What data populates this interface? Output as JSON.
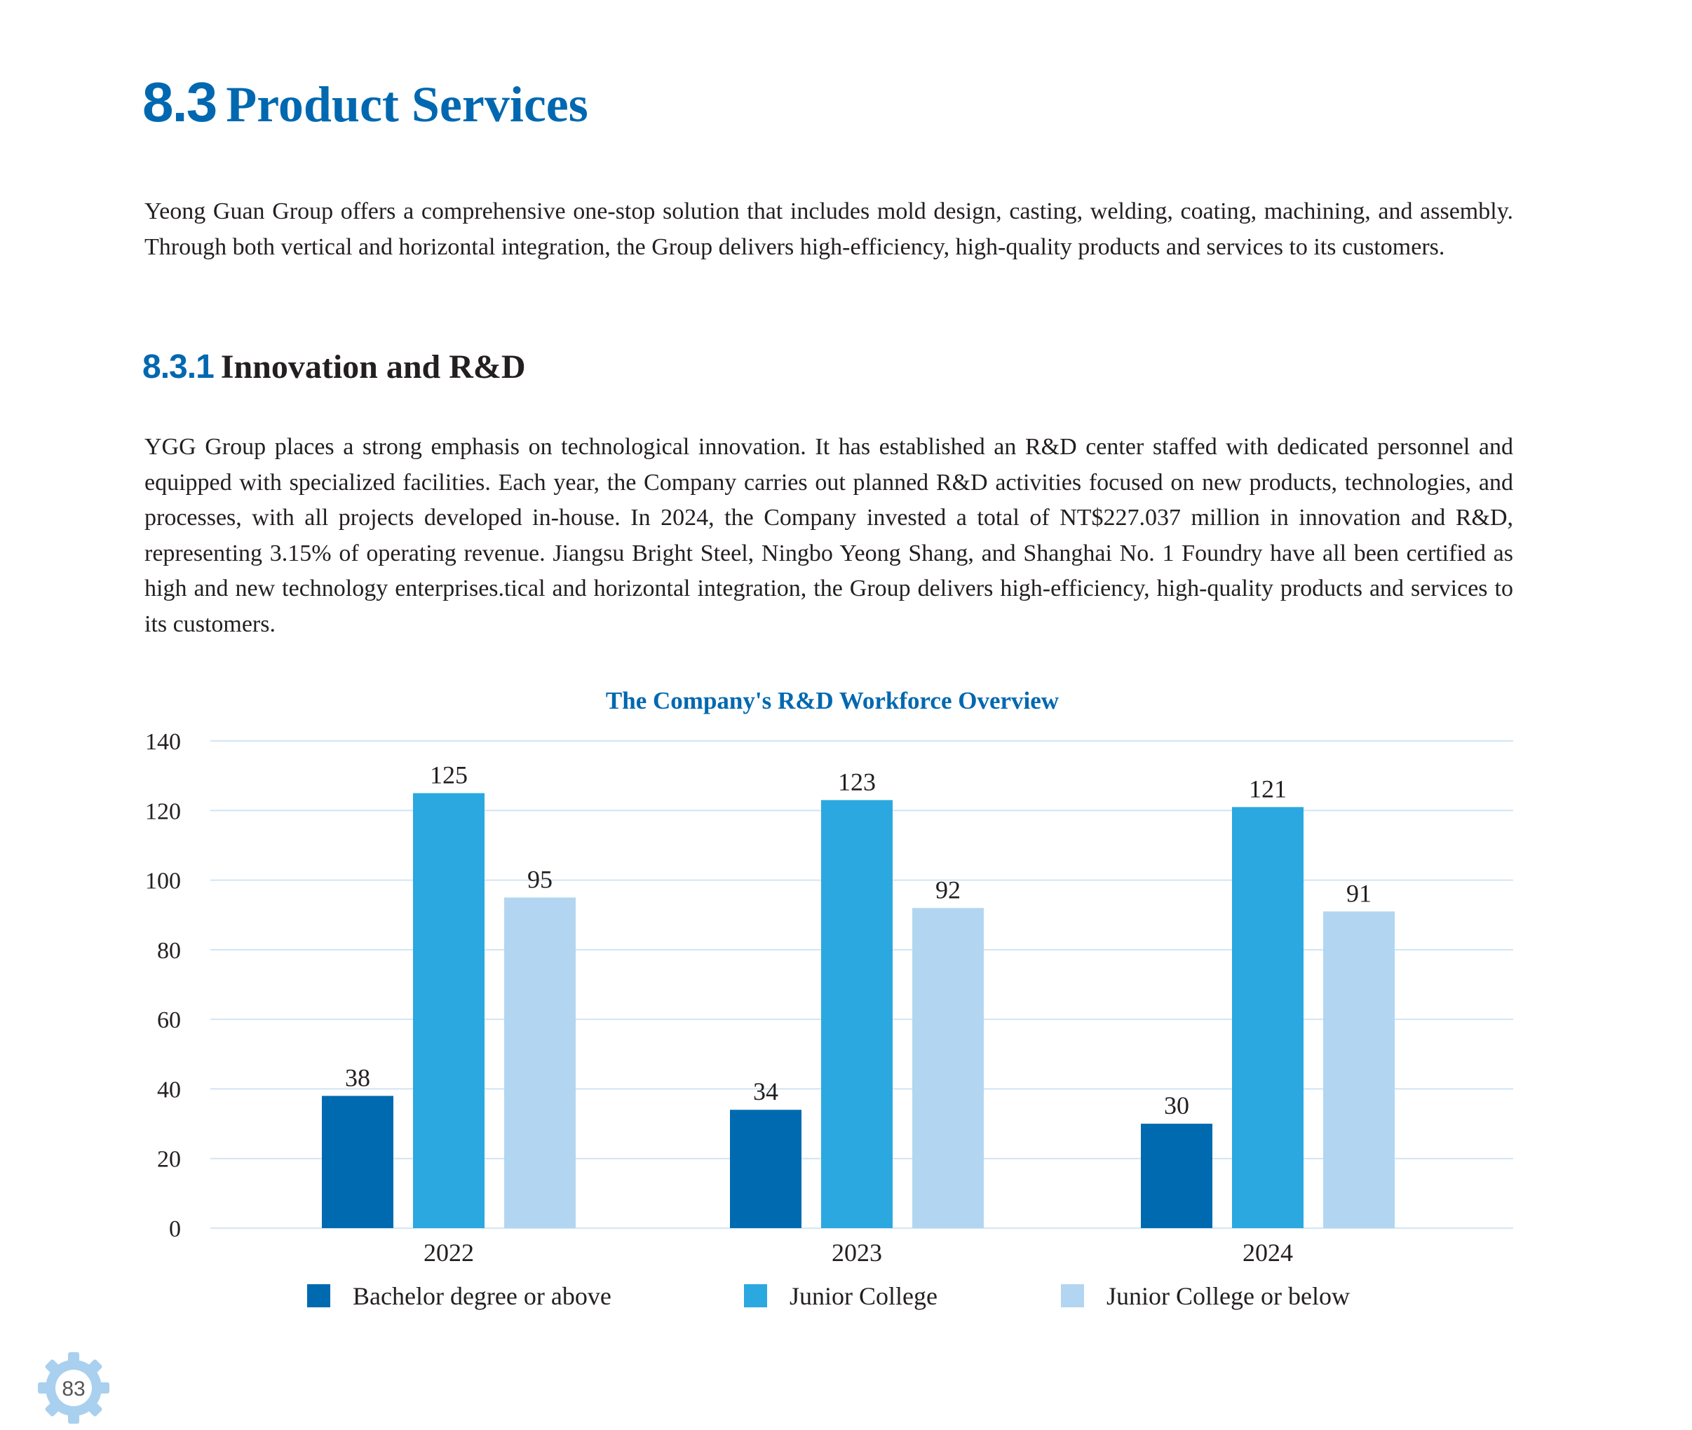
{
  "section": {
    "number": "8.3",
    "title": "Product Services"
  },
  "intro": "Yeong Guan Group offers a comprehensive one-stop solution that includes mold design, casting, welding, coating, machining, and assembly. Through both vertical and horizontal integration, the Group delivers high-efficiency, high-quality products and services to its customers.",
  "subsection": {
    "number": "8.3.1",
    "title": "Innovation and R&D"
  },
  "rd_paragraph": "YGG Group places a strong emphasis on technological innovation. It has established an R&D center staffed with dedicated personnel and equipped with specialized facilities. Each year, the Company carries out planned R&D activities focused on new products, technologies, and processes, with all projects developed in-house. In 2024, the Company invested a total of NT$227.037 million in innovation and R&D, representing 3.15% of operating revenue. Jiangsu Bright Steel, Ningbo Yeong Shang, and Shanghai No. 1 Foundry have all been certified as high and new technology enterprises.tical and horizontal integration, the Group delivers high-efficiency, high-quality products and services to its customers.",
  "chart_data": {
    "type": "bar",
    "title": "The Company's R&D Workforce Overview",
    "categories": [
      "2022",
      "2023",
      "2024"
    ],
    "series": [
      {
        "name": "Bachelor degree or above",
        "values": [
          38,
          34,
          30
        ],
        "color": "#006ab0"
      },
      {
        "name": "Junior College",
        "values": [
          125,
          123,
          121
        ],
        "color": "#2ba8e0"
      },
      {
        "name": "Junior College or below",
        "values": [
          95,
          92,
          91
        ],
        "color": "#b2d6f1"
      }
    ],
    "ylim": [
      0,
      140
    ],
    "yticks": [
      0,
      20,
      40,
      60,
      80,
      100,
      120,
      140
    ],
    "grid": true,
    "legend": "bottom",
    "title_color": "#0068b0",
    "grid_color": "#d2e4f3"
  },
  "page_number": "83"
}
